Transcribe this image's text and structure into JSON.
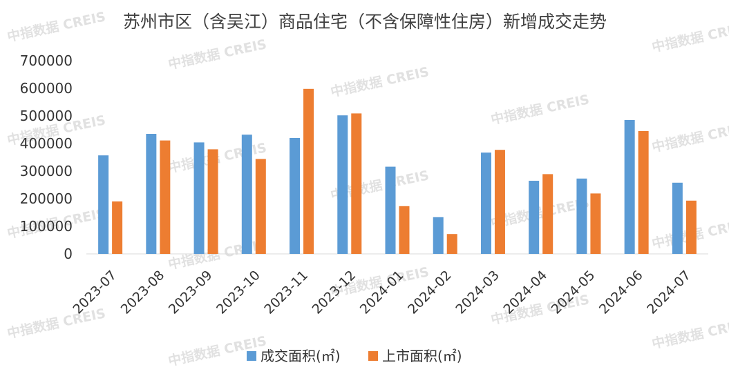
{
  "chart_data": {
    "type": "bar",
    "title": "苏州市区（含吴江）商品住宅（不含保障性住房）新增成交走势",
    "categories": [
      "2023-07",
      "2023-08",
      "2023-09",
      "2023-10",
      "2023-11",
      "2023-12",
      "2024-01",
      "2024-02",
      "2024-03",
      "2024-04",
      "2024-05",
      "2024-06",
      "2024-07"
    ],
    "series": [
      {
        "name": "成交面积(㎡)",
        "color": "#5b9bd5",
        "values": [
          357000,
          435000,
          404000,
          432000,
          420000,
          502000,
          316000,
          133000,
          367000,
          265000,
          273000,
          485000,
          258000
        ]
      },
      {
        "name": "上市面积(㎡)",
        "color": "#ed7d31",
        "values": [
          190000,
          411000,
          379000,
          344000,
          598000,
          509000,
          173000,
          72000,
          377000,
          289000,
          219000,
          445000,
          193000
        ]
      }
    ],
    "yticks": [
      "0",
      "100000",
      "200000",
      "300000",
      "400000",
      "500000",
      "600000",
      "700000"
    ],
    "ylim": [
      0,
      700000
    ],
    "xlabel": "",
    "ylabel": "",
    "grid": false,
    "legend_position": "bottom",
    "watermark": "中指数据 CREIS"
  }
}
